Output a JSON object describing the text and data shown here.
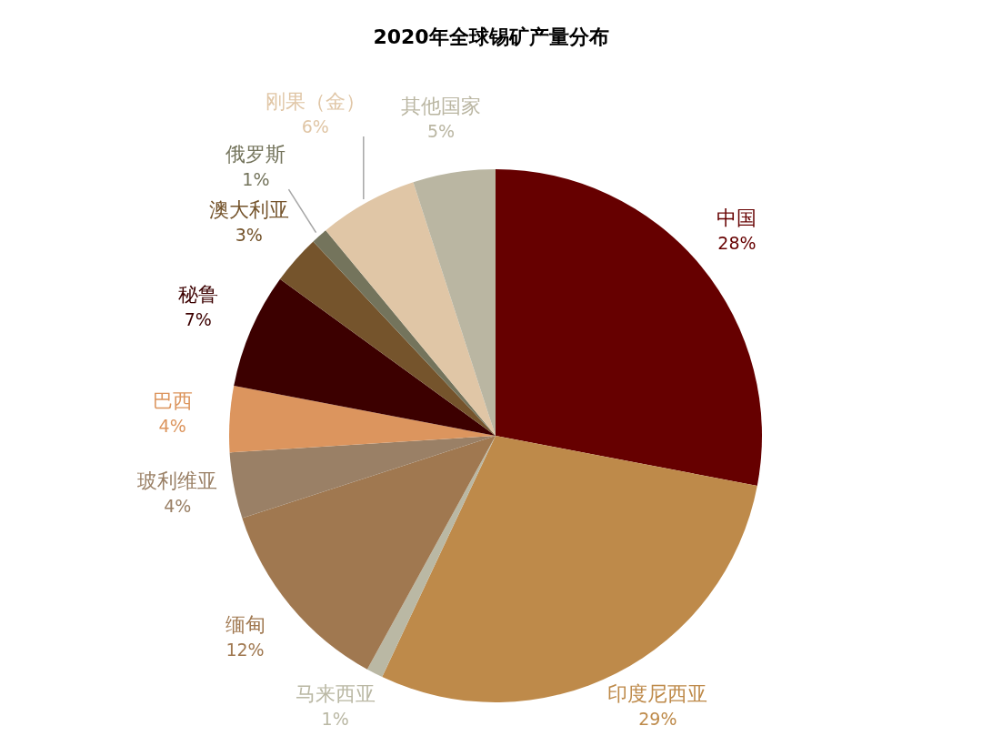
{
  "chart_data": {
    "type": "pie",
    "title": "2020年全球锡矿产量分布",
    "categories": [
      "中国",
      "印度尼西亚",
      "马来西亚",
      "缅甸",
      "玻利维亚",
      "巴西",
      "秘鲁",
      "澳大利亚",
      "俄罗斯",
      "刚果（金）",
      "其他国家"
    ],
    "values": [
      28,
      29,
      1,
      12,
      4,
      4,
      7,
      3,
      1,
      6,
      5
    ],
    "value_labels": [
      "28%",
      "29%",
      "1%",
      "12%",
      "4%",
      "4%",
      "7%",
      "3%",
      "1%",
      "6%",
      "5%"
    ],
    "colors": [
      "#660000",
      "#be8a4a",
      "#bab8a4",
      "#a07850",
      "#9a8066",
      "#dc955e",
      "#3c0000",
      "#75542c",
      "#74745c",
      "#e0c6a6",
      "#bab6a2"
    ]
  }
}
